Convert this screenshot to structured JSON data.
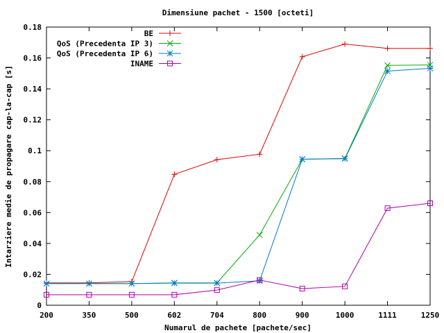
{
  "chart_data": {
    "type": "line",
    "title": "Dimensiune pachet - 1500 [octeti]",
    "xlabel": "Numarul de pachete [pachete/sec]",
    "ylabel": "Intarziere medie de propagare cap-la-cap [s]",
    "categories": [
      "200",
      "350",
      "500",
      "602",
      "704",
      "800",
      "900",
      "1000",
      "1111",
      "1250"
    ],
    "ylim": [
      0,
      0.18
    ],
    "y_ticks": [
      "0",
      "0.02",
      "0.04",
      "0.06",
      "0.08",
      "0.1",
      "0.12",
      "0.14",
      "0.16",
      "0.18"
    ],
    "y_tick_values": [
      0,
      0.02,
      0.04,
      0.06,
      0.08,
      0.1,
      0.12,
      0.14,
      0.16,
      0.18
    ],
    "grid": false,
    "legend_position": "top-left",
    "series": [
      {
        "name": "BE",
        "color": "#dd0000",
        "marker": "plus",
        "values": [
          0.0145,
          0.0145,
          0.0153,
          0.0847,
          0.0942,
          0.0977,
          0.1608,
          0.169,
          0.1662,
          0.1662
        ]
      },
      {
        "name": "QoS (Precedenta IP 3)",
        "color": "#00aa00",
        "marker": "cross",
        "values": [
          0.014,
          0.014,
          0.014,
          0.0145,
          0.0145,
          0.0455,
          0.0945,
          0.095,
          0.1552,
          0.1555
        ]
      },
      {
        "name": "QoS (Precedenta IP 6)",
        "color": "#0077cc",
        "marker": "star",
        "values": [
          0.014,
          0.014,
          0.014,
          0.0143,
          0.0143,
          0.0158,
          0.0945,
          0.0948,
          0.1515,
          0.1533
        ]
      },
      {
        "name": "INAME",
        "color": "#aa00aa",
        "marker": "square",
        "values": [
          0.0068,
          0.0068,
          0.0068,
          0.0068,
          0.0098,
          0.0163,
          0.0108,
          0.0122,
          0.0628,
          0.066
        ]
      }
    ]
  }
}
